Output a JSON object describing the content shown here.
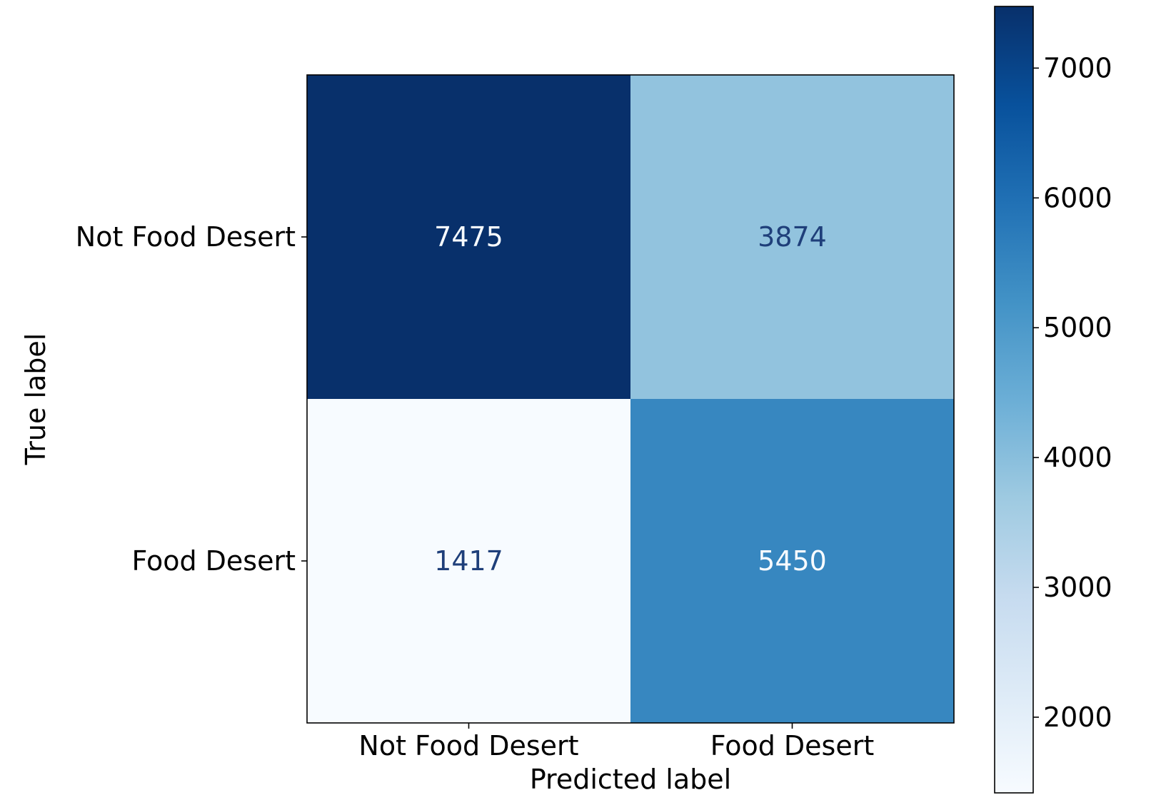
{
  "chart_data": {
    "type": "heatmap",
    "title": "",
    "xlabel": "Predicted label",
    "ylabel": "True label",
    "x_categories": [
      "Not Food Desert",
      "Food Desert"
    ],
    "y_categories": [
      "Not Food Desert",
      "Food Desert"
    ],
    "matrix": [
      [
        7475,
        3874
      ],
      [
        1417,
        5450
      ]
    ],
    "colormap": "Blues",
    "color_range": [
      1417,
      7475
    ],
    "colorbar": {
      "ticks": [
        2000,
        3000,
        4000,
        5000,
        6000,
        7000
      ],
      "tick_labels": [
        "2000",
        "3000",
        "4000",
        "5000",
        "6000",
        "7000"
      ]
    },
    "annotation_colors": {
      "on_dark": "#f7fbff",
      "on_light": "#1f3f7a"
    },
    "grid": false,
    "legend": "colorbar-right"
  }
}
